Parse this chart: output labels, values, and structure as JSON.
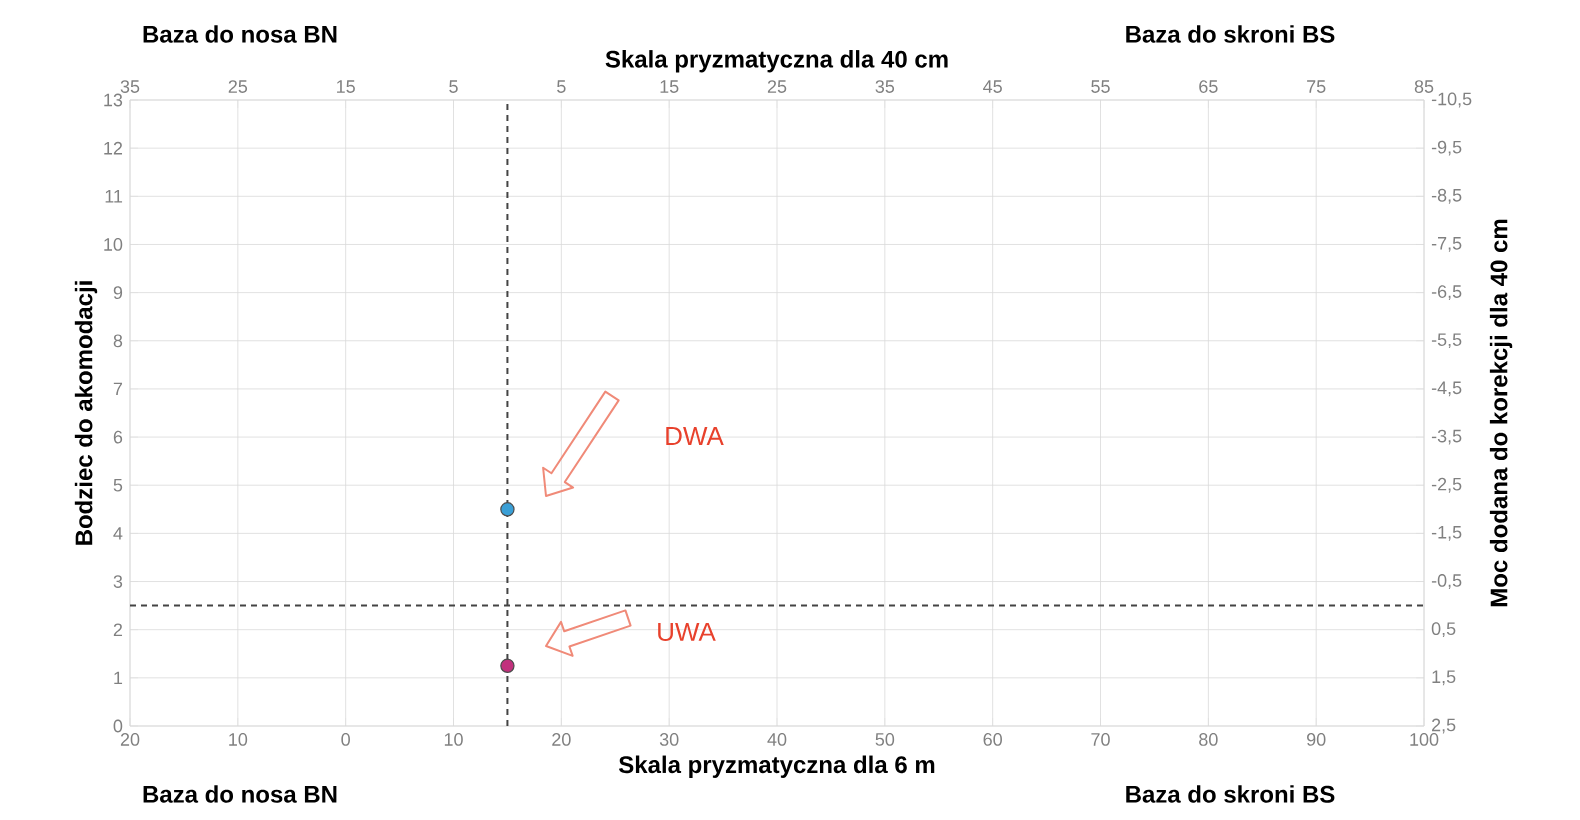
{
  "chart_data": {
    "type": "scatter",
    "xlabel": "Skala pryzmatyczna dla 6 m",
    "x2label": "Skala pryzmatyczna dla 40 cm",
    "ylabel": "Bodziec do akomodacji",
    "y2label": "Moc dodana do korekcji dla 40 cm",
    "xlim": [
      -20,
      100
    ],
    "xticks": [
      {
        "value": -20,
        "label": "20"
      },
      {
        "value": -10,
        "label": "10"
      },
      0,
      10,
      20,
      30,
      40,
      50,
      60,
      70,
      80,
      90,
      100
    ],
    "x2lim": [
      -35,
      85
    ],
    "x2ticks": [
      {
        "value": -35,
        "label": "35"
      },
      {
        "value": -25,
        "label": "25"
      },
      {
        "value": -15,
        "label": "15"
      },
      {
        "value": -5,
        "label": "5"
      },
      5,
      15,
      25,
      35,
      45,
      55,
      65,
      75,
      85
    ],
    "ylim": [
      0,
      13
    ],
    "yticks": [
      0,
      1,
      2,
      3,
      4,
      5,
      6,
      7,
      8,
      9,
      10,
      11,
      12,
      13
    ],
    "y2lim": [
      2.5,
      -10.5
    ],
    "y2ticks": [
      {
        "value": 2.5,
        "label": "2,5"
      },
      {
        "value": 1.5,
        "label": "1,5"
      },
      {
        "value": 0.5,
        "label": "0,5"
      },
      {
        "value": -0.5,
        "label": "-0,5"
      },
      {
        "value": -1.5,
        "label": "-1,5"
      },
      {
        "value": -2.5,
        "label": "-2,5"
      },
      {
        "value": -3.5,
        "label": "-3,5"
      },
      {
        "value": -4.5,
        "label": "-4,5"
      },
      {
        "value": -5.5,
        "label": "-5,5"
      },
      {
        "value": -6.5,
        "label": "-6,5"
      },
      {
        "value": -7.5,
        "label": "-7,5"
      },
      {
        "value": -8.5,
        "label": "-8,5"
      },
      {
        "value": -9.5,
        "label": "-9,5"
      },
      {
        "value": -10.5,
        "label": "-10,5"
      }
    ],
    "series": [
      {
        "color": "#3a9fd6",
        "x": [
          15
        ],
        "values": [
          4.5
        ]
      },
      {
        "color": "#c2317d",
        "x": [
          15
        ],
        "values": [
          1.25
        ]
      }
    ],
    "marker": "circle",
    "grid": true,
    "ref_lines": [
      {
        "axis": "x",
        "value": 15,
        "color": "#444444",
        "line_style": "dashed"
      },
      {
        "axis": "y",
        "value": 2.5,
        "color": "#444444",
        "line_style": "dashed"
      }
    ],
    "annotations": [
      "Baza do nosa BN",
      "Baza do skroni BS",
      "Baza do nosa BN",
      "Baza do skroni BS",
      "DWA",
      "UWA"
    ]
  }
}
